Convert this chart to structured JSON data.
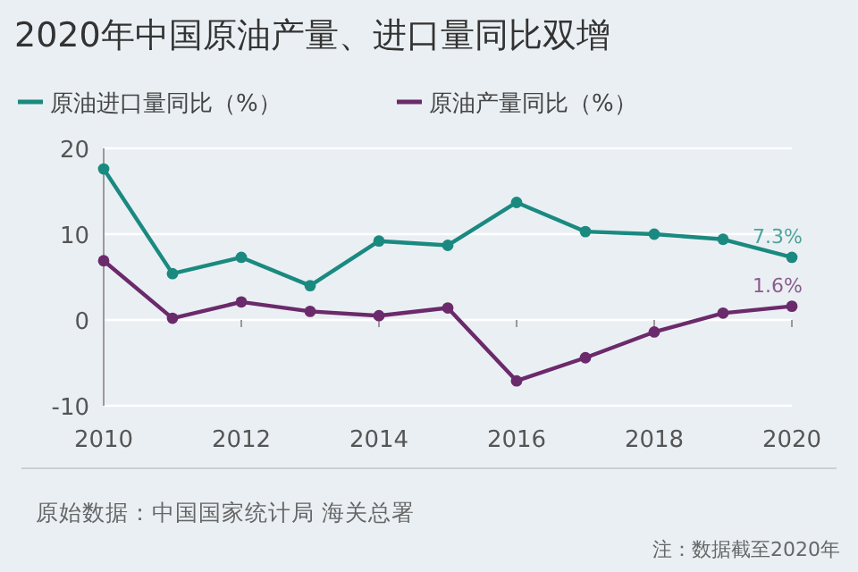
{
  "chart_data": {
    "type": "line",
    "title": "2020年中国原油产量、进口量同比双增",
    "x": [
      2010,
      2011,
      2012,
      2013,
      2014,
      2015,
      2016,
      2017,
      2018,
      2019,
      2020
    ],
    "xlim": [
      2010,
      2020
    ],
    "xticks": [
      2010,
      2012,
      2014,
      2016,
      2018,
      2020
    ],
    "ylim": [
      -10,
      20
    ],
    "yticks": [
      -10,
      0,
      10,
      20
    ],
    "grid": "y",
    "legend": "top left",
    "marker": "circle",
    "series": [
      {
        "name": "原油进口量同比（%）",
        "color": "#1a8a80",
        "values": [
          17.6,
          5.4,
          7.3,
          4.0,
          9.2,
          8.7,
          13.7,
          10.3,
          10.0,
          9.4,
          7.3
        ],
        "value_labels": [
          null,
          null,
          null,
          null,
          null,
          null,
          null,
          null,
          null,
          null,
          "7.3%"
        ]
      },
      {
        "name": "原油产量同比（%）",
        "color": "#6b2a6b",
        "values": [
          6.9,
          0.2,
          2.1,
          1.0,
          0.5,
          1.4,
          -7.1,
          -4.4,
          -1.4,
          0.8,
          1.6
        ],
        "value_labels": [
          null,
          null,
          null,
          null,
          null,
          null,
          null,
          null,
          null,
          null,
          "1.6%"
        ]
      }
    ],
    "annotations": [
      "原始数据：中国国家统计局 海关总署",
      "注：数据截至2020年"
    ]
  }
}
